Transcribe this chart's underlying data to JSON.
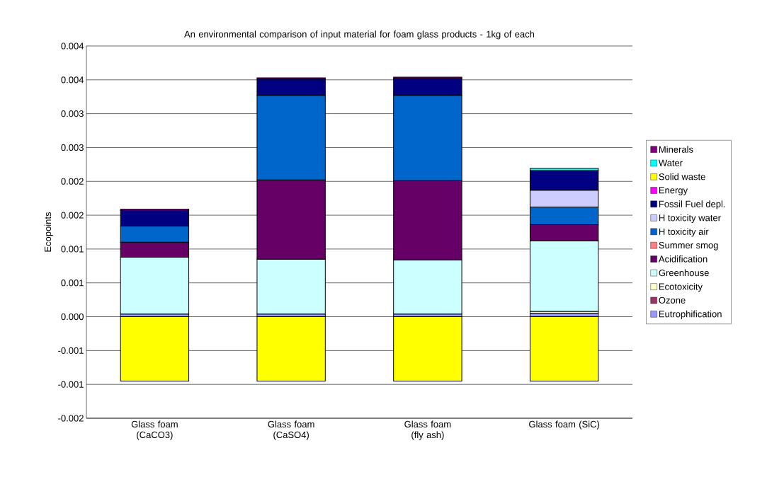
{
  "chart_data": {
    "type": "bar",
    "stacked": true,
    "title": "An environmental comparison of input material for foam glass products - 1kg of each",
    "ylabel": "Ecopoints",
    "categories": [
      "Glass foam (CaCO3)",
      "Glass foam (CaSO4)",
      "Glass foam (fly ash)",
      "Glass foam (SiC)"
    ],
    "series": [
      {
        "name": "Eutrophification",
        "color": "#9999ff",
        "values": [
          4e-05,
          4e-05,
          4e-05,
          5e-05
        ]
      },
      {
        "name": "Ozone",
        "color": "#993366",
        "values": [
          null,
          null,
          null,
          null
        ]
      },
      {
        "name": "Ecotoxicity",
        "color": "#ffffcc",
        "values": [
          null,
          null,
          null,
          3e-05
        ]
      },
      {
        "name": "Greenhouse",
        "color": "#ccffff",
        "values": [
          0.00084,
          0.00081,
          0.0008,
          0.00104
        ]
      },
      {
        "name": "Acidification",
        "color": "#660066",
        "values": [
          0.00022,
          0.00117,
          0.00117,
          0.00024
        ]
      },
      {
        "name": "Summer smog",
        "color": "#ff8080",
        "values": [
          null,
          null,
          null,
          null
        ]
      },
      {
        "name": "H toxicity air",
        "color": "#0066cc",
        "values": [
          0.00024,
          0.00125,
          0.00126,
          0.00026
        ]
      },
      {
        "name": "H toxicity water",
        "color": "#ccccff",
        "values": [
          null,
          null,
          null,
          0.00025
        ]
      },
      {
        "name": "Fossil Fuel depl.",
        "color": "#000080",
        "values": [
          0.00023,
          0.00024,
          0.00025,
          0.00029
        ]
      },
      {
        "name": "Energy",
        "color": "#ff00ff",
        "values": [
          null,
          null,
          null,
          null
        ]
      },
      {
        "name": "Solid waste",
        "color": "#ffff00",
        "values": [
          -0.00095,
          -0.00095,
          -0.00095,
          -0.00095
        ]
      },
      {
        "name": "Water",
        "color": "#00ffff",
        "values": [
          null,
          null,
          null,
          3e-05
        ]
      },
      {
        "name": "Minerals",
        "color": "#800080",
        "values": [
          2e-05,
          2e-05,
          2e-05,
          null
        ]
      }
    ],
    "ylim": [
      -0.0015,
      0.004
    ],
    "yticks": [
      {
        "value": -0.0015,
        "label": "-0.002"
      },
      {
        "value": -0.001,
        "label": "-0.001"
      },
      {
        "value": -0.0005,
        "label": "-0.001"
      },
      {
        "value": 0,
        "label": "0.000"
      },
      {
        "value": 0.0005,
        "label": "0.001"
      },
      {
        "value": 0.001,
        "label": "0.001"
      },
      {
        "value": 0.0015,
        "label": "0.002"
      },
      {
        "value": 0.002,
        "label": "0.002"
      },
      {
        "value": 0.0025,
        "label": "0.003"
      },
      {
        "value": 0.003,
        "label": "0.003"
      },
      {
        "value": 0.0035,
        "label": "0.004"
      },
      {
        "value": 0.004,
        "label": "0.004"
      }
    ],
    "grid": "y",
    "legend": "right"
  }
}
